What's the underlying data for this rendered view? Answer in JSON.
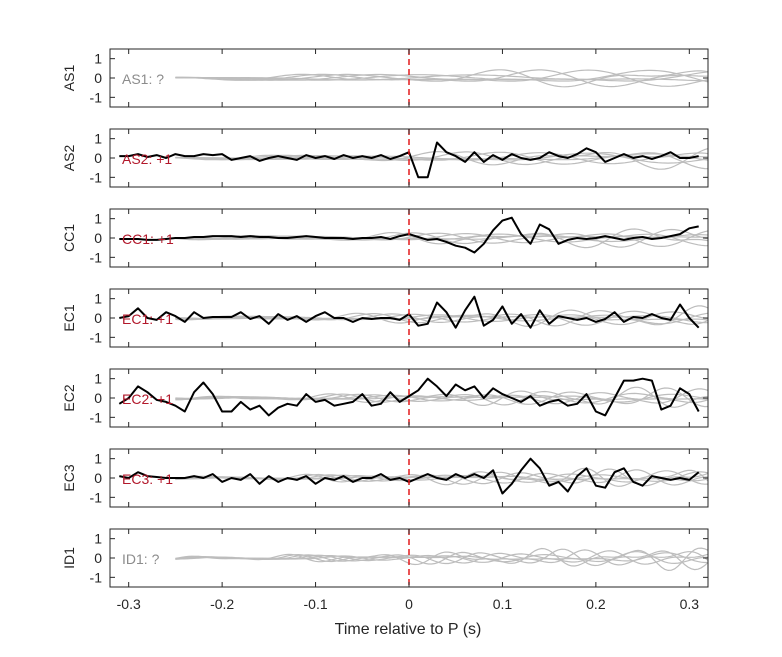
{
  "chart_data": {
    "type": "line",
    "xlabel": "Time relative to P (s)",
    "xlim": [
      -0.32,
      0.32
    ],
    "xticks": [
      -0.3,
      -0.2,
      -0.1,
      0,
      0.1,
      0.2,
      0.3
    ],
    "xtick_labels": [
      "-0.3",
      "-0.2",
      "-0.1",
      "0",
      "0.1",
      "0.2",
      "0.3"
    ],
    "ylim": [
      -1.5,
      1.5
    ],
    "yticks": [
      -1,
      0,
      1
    ],
    "ytick_labels": [
      "-1",
      "0",
      "1"
    ],
    "marker_time": 0,
    "colors": {
      "highlight": "#000000",
      "background_traces": "#bdbdbd",
      "marker": "#e41a1c",
      "label_positive": "#b2182b",
      "label_unknown": "#8c8c8c",
      "axes": "#262626"
    },
    "panels": [
      {
        "ylabel": "AS1",
        "label": "AS1: ?",
        "polarity": "unknown",
        "highlight": null
      },
      {
        "ylabel": "AS2",
        "label": "AS2: +1",
        "polarity": "positive",
        "highlight": {
          "x": [
            -0.31,
            -0.3,
            -0.29,
            -0.28,
            -0.27,
            -0.26,
            -0.25,
            -0.24,
            -0.23,
            -0.22,
            -0.21,
            -0.2,
            -0.19,
            -0.18,
            -0.17,
            -0.16,
            -0.15,
            -0.14,
            -0.13,
            -0.12,
            -0.11,
            -0.1,
            -0.09,
            -0.08,
            -0.07,
            -0.06,
            -0.05,
            -0.04,
            -0.03,
            -0.02,
            -0.01,
            0.0,
            0.01,
            0.02,
            0.03,
            0.04,
            0.05,
            0.06,
            0.07,
            0.08,
            0.09,
            0.1,
            0.11,
            0.12,
            0.13,
            0.14,
            0.15,
            0.16,
            0.17,
            0.18,
            0.19,
            0.2,
            0.21,
            0.22,
            0.23,
            0.24,
            0.25,
            0.26,
            0.27,
            0.28,
            0.29,
            0.3,
            0.31
          ],
          "y": [
            0.1,
            0.1,
            0.2,
            0.05,
            0.15,
            0.0,
            0.2,
            0.1,
            0.1,
            0.2,
            0.15,
            0.2,
            -0.1,
            0.0,
            0.1,
            -0.15,
            0.0,
            0.1,
            0.0,
            -0.1,
            0.15,
            0.0,
            0.1,
            -0.05,
            0.15,
            0.0,
            0.1,
            0.0,
            0.15,
            -0.05,
            0.1,
            0.3,
            -1.0,
            -1.0,
            0.8,
            0.3,
            0.1,
            -0.2,
            0.3,
            -0.2,
            0.15,
            -0.1,
            0.2,
            0.0,
            -0.1,
            0.0,
            0.3,
            0.1,
            0.0,
            0.2,
            0.5,
            0.3,
            -0.2,
            0.0,
            0.2,
            0.0,
            0.1,
            -0.05,
            0.1,
            0.3,
            0.0,
            0.0,
            0.1
          ]
        }
      },
      {
        "ylabel": "CC1",
        "label": "CC1: +1",
        "polarity": "positive",
        "highlight": {
          "x": [
            -0.31,
            -0.3,
            -0.29,
            -0.28,
            -0.27,
            -0.26,
            -0.25,
            -0.24,
            -0.23,
            -0.22,
            -0.21,
            -0.2,
            -0.19,
            -0.18,
            -0.17,
            -0.16,
            -0.15,
            -0.14,
            -0.13,
            -0.12,
            -0.11,
            -0.1,
            -0.09,
            -0.08,
            -0.07,
            -0.06,
            -0.05,
            -0.04,
            -0.03,
            -0.02,
            -0.01,
            0.0,
            0.01,
            0.02,
            0.03,
            0.04,
            0.05,
            0.06,
            0.07,
            0.08,
            0.09,
            0.1,
            0.11,
            0.12,
            0.13,
            0.14,
            0.15,
            0.16,
            0.17,
            0.18,
            0.19,
            0.2,
            0.21,
            0.22,
            0.23,
            0.24,
            0.25,
            0.26,
            0.27,
            0.28,
            0.29,
            0.3,
            0.31
          ],
          "y": [
            -0.05,
            -0.05,
            -0.05,
            -0.1,
            -0.1,
            -0.05,
            0.0,
            0.0,
            0.05,
            0.05,
            0.1,
            0.1,
            0.1,
            0.05,
            0.1,
            0.05,
            0.05,
            0.0,
            0.0,
            0.05,
            0.1,
            0.05,
            0.0,
            0.0,
            0.0,
            -0.05,
            0.0,
            0.0,
            0.05,
            -0.05,
            0.1,
            0.2,
            0.05,
            -0.1,
            -0.05,
            -0.2,
            -0.4,
            -0.5,
            -0.75,
            -0.3,
            0.4,
            0.9,
            1.05,
            0.2,
            -0.3,
            0.7,
            0.45,
            -0.3,
            -0.1,
            0.0,
            -0.05,
            0.0,
            0.1,
            0.0,
            -0.1,
            0.0,
            0.05,
            -0.05,
            0.0,
            0.1,
            0.2,
            0.5,
            0.6
          ]
        }
      },
      {
        "ylabel": "EC1",
        "label": "EC1: +1",
        "polarity": "positive",
        "highlight": {
          "x": [
            -0.31,
            -0.3,
            -0.29,
            -0.28,
            -0.27,
            -0.26,
            -0.25,
            -0.24,
            -0.23,
            -0.22,
            -0.21,
            -0.2,
            -0.19,
            -0.18,
            -0.17,
            -0.16,
            -0.15,
            -0.14,
            -0.13,
            -0.12,
            -0.11,
            -0.1,
            -0.09,
            -0.08,
            -0.07,
            -0.06,
            -0.05,
            -0.04,
            -0.03,
            -0.02,
            -0.01,
            0.0,
            0.01,
            0.02,
            0.03,
            0.04,
            0.05,
            0.06,
            0.07,
            0.08,
            0.09,
            0.1,
            0.11,
            0.12,
            0.13,
            0.14,
            0.15,
            0.16,
            0.17,
            0.18,
            0.19,
            0.2,
            0.21,
            0.22,
            0.23,
            0.24,
            0.25,
            0.26,
            0.27,
            0.28,
            0.29,
            0.3,
            0.31
          ],
          "y": [
            0.0,
            0.1,
            0.5,
            0.0,
            -0.1,
            0.3,
            0.1,
            -0.2,
            0.3,
            0.0,
            0.05,
            0.05,
            0.05,
            0.3,
            -0.05,
            0.1,
            -0.3,
            0.2,
            -0.1,
            0.1,
            -0.2,
            0.1,
            0.3,
            0.0,
            0.0,
            -0.2,
            0.0,
            -0.05,
            0.0,
            0.0,
            -0.1,
            0.2,
            -0.4,
            -0.3,
            0.8,
            0.3,
            -0.5,
            0.4,
            1.1,
            -0.4,
            -0.1,
            0.6,
            -0.3,
            0.2,
            -0.5,
            0.4,
            -0.3,
            0.1,
            0.0,
            -0.1,
            0.0,
            -0.2,
            -0.05,
            0.3,
            -0.2,
            0.05,
            0.0,
            0.2,
            0.0,
            -0.1,
            0.7,
            0.0,
            -0.5
          ]
        }
      },
      {
        "ylabel": "EC2",
        "label": "EC2: +1",
        "polarity": "positive",
        "highlight": {
          "x": [
            -0.31,
            -0.3,
            -0.29,
            -0.28,
            -0.27,
            -0.26,
            -0.25,
            -0.24,
            -0.23,
            -0.22,
            -0.21,
            -0.2,
            -0.19,
            -0.18,
            -0.17,
            -0.16,
            -0.15,
            -0.14,
            -0.13,
            -0.12,
            -0.11,
            -0.1,
            -0.09,
            -0.08,
            -0.07,
            -0.06,
            -0.05,
            -0.04,
            -0.03,
            -0.02,
            -0.01,
            0.0,
            0.01,
            0.02,
            0.03,
            0.04,
            0.05,
            0.06,
            0.07,
            0.08,
            0.09,
            0.1,
            0.11,
            0.12,
            0.13,
            0.14,
            0.15,
            0.16,
            0.17,
            0.18,
            0.19,
            0.2,
            0.21,
            0.22,
            0.23,
            0.24,
            0.25,
            0.26,
            0.27,
            0.28,
            0.29,
            0.3,
            0.31
          ],
          "y": [
            -0.3,
            0.0,
            0.6,
            0.3,
            -0.1,
            -0.2,
            -0.4,
            -0.7,
            0.3,
            0.8,
            0.2,
            -0.7,
            -0.7,
            -0.2,
            -0.6,
            -0.4,
            -0.9,
            -0.5,
            -0.3,
            -0.4,
            0.2,
            -0.2,
            -0.1,
            -0.4,
            -0.3,
            -0.2,
            0.2,
            -0.4,
            -0.3,
            0.3,
            -0.2,
            0.1,
            0.4,
            1.0,
            0.6,
            0.1,
            0.7,
            0.4,
            0.6,
            0.0,
            0.5,
            0.2,
            0.0,
            -0.2,
            0.1,
            -0.4,
            -0.2,
            -0.1,
            -0.4,
            -0.3,
            0.2,
            -0.7,
            -0.9,
            0.0,
            0.9,
            0.9,
            1.0,
            0.9,
            -0.6,
            -0.4,
            0.5,
            0.2,
            -0.7
          ]
        }
      },
      {
        "ylabel": "EC3",
        "label": "EC3: +1",
        "polarity": "positive",
        "highlight": {
          "x": [
            -0.31,
            -0.3,
            -0.29,
            -0.28,
            -0.27,
            -0.26,
            -0.25,
            -0.24,
            -0.23,
            -0.22,
            -0.21,
            -0.2,
            -0.19,
            -0.18,
            -0.17,
            -0.16,
            -0.15,
            -0.14,
            -0.13,
            -0.12,
            -0.11,
            -0.1,
            -0.09,
            -0.08,
            -0.07,
            -0.06,
            -0.05,
            -0.04,
            -0.03,
            -0.02,
            -0.01,
            0.0,
            0.01,
            0.02,
            0.03,
            0.04,
            0.05,
            0.06,
            0.07,
            0.08,
            0.09,
            0.1,
            0.11,
            0.12,
            0.13,
            0.14,
            0.15,
            0.16,
            0.17,
            0.18,
            0.19,
            0.2,
            0.21,
            0.22,
            0.23,
            0.24,
            0.25,
            0.26,
            0.27,
            0.28,
            0.29,
            0.3,
            0.31
          ],
          "y": [
            0.1,
            0.0,
            0.3,
            0.1,
            0.05,
            0.0,
            0.0,
            0.0,
            0.1,
            0.0,
            0.2,
            -0.2,
            0.0,
            -0.1,
            0.2,
            -0.3,
            0.1,
            -0.2,
            0.0,
            -0.1,
            0.1,
            -0.3,
            0.0,
            -0.1,
            0.1,
            -0.2,
            0.0,
            0.0,
            0.2,
            -0.1,
            0.0,
            -0.2,
            0.0,
            0.2,
            0.0,
            -0.1,
            0.2,
            0.0,
            0.2,
            0.0,
            0.4,
            -0.8,
            -0.3,
            0.4,
            1.0,
            0.5,
            -0.4,
            -0.2,
            -0.7,
            0.1,
            0.5,
            -0.4,
            -0.5,
            0.3,
            0.5,
            -0.2,
            -0.4,
            0.1,
            0.0,
            -0.1,
            0.0,
            -0.1,
            0.3
          ]
        }
      },
      {
        "ylabel": "ID1",
        "label": "ID1: ?",
        "polarity": "unknown",
        "highlight": null
      }
    ]
  }
}
